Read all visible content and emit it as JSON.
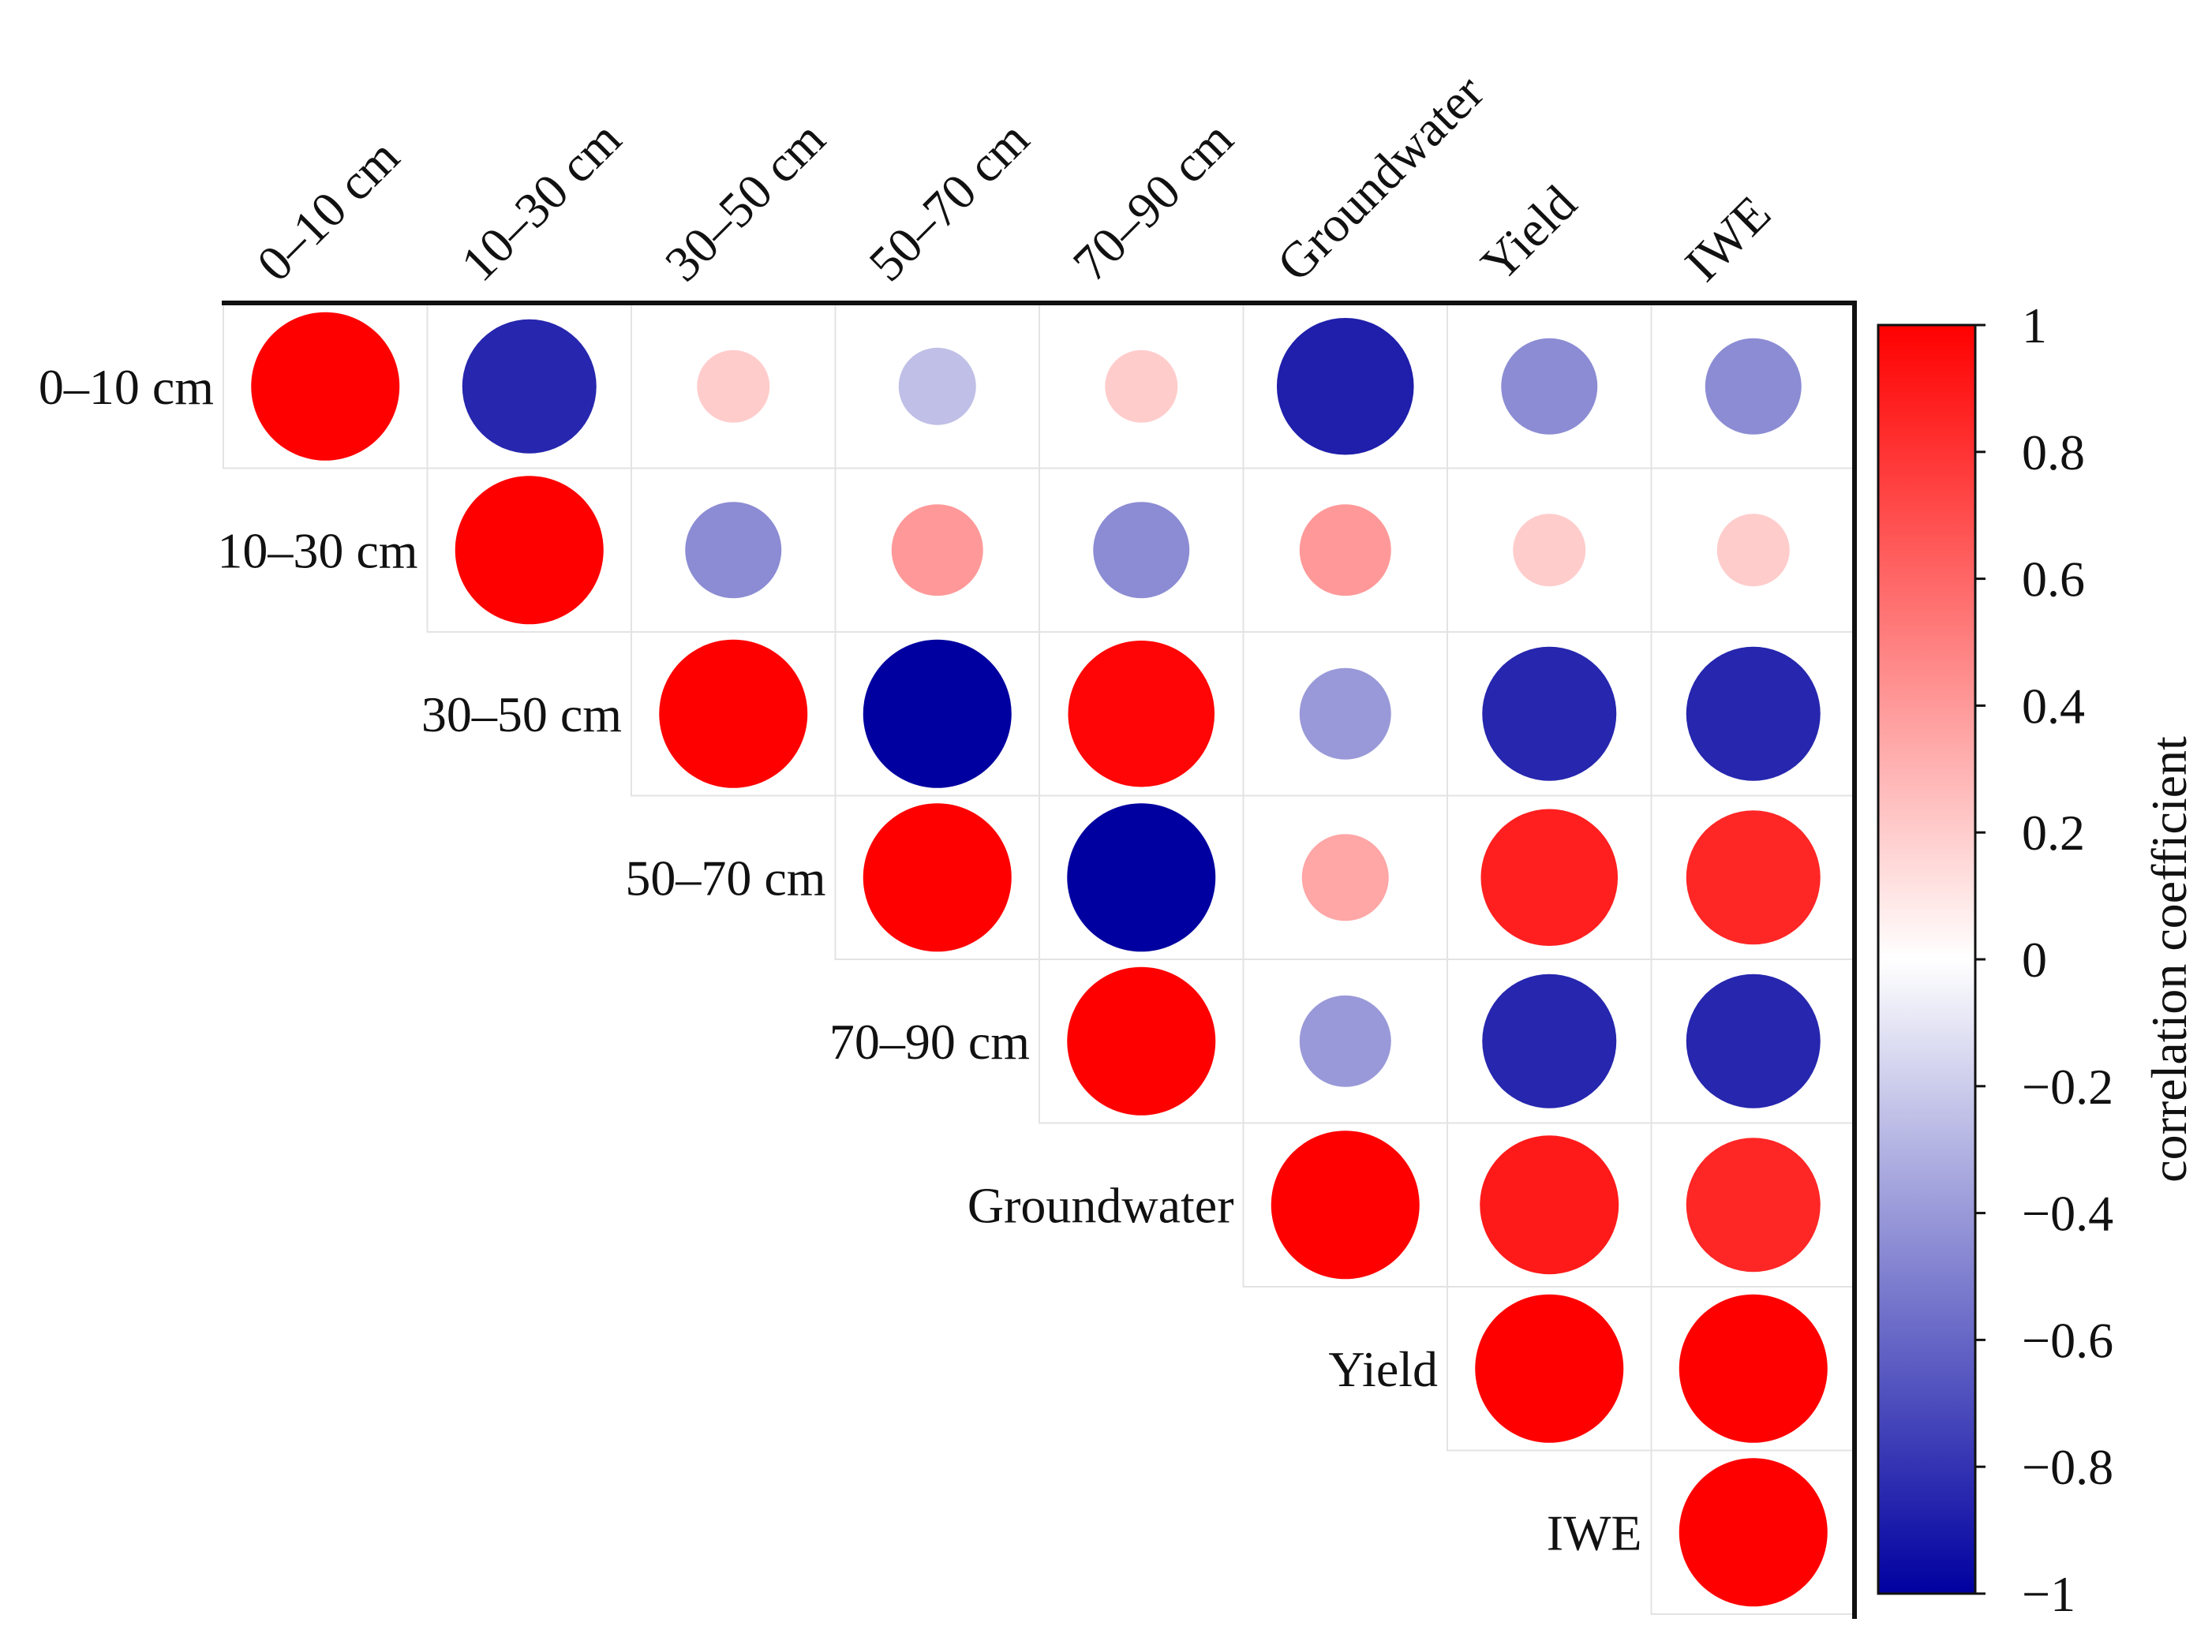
{
  "chart_data": {
    "type": "heatmap",
    "style": "upper-triangle correlation circles",
    "variables": [
      "0–10 cm",
      "10–30 cm",
      "30–50 cm",
      "50–70 cm",
      "70–90 cm",
      "Groundwater",
      "Yield",
      "IWE"
    ],
    "matrix": [
      [
        1.0,
        -0.85,
        0.2,
        -0.25,
        0.2,
        -0.88,
        -0.45,
        -0.45
      ],
      [
        -0.85,
        1.0,
        -0.45,
        0.4,
        -0.45,
        0.4,
        0.2,
        0.2
      ],
      [
        0.2,
        -0.45,
        1.0,
        -1.0,
        0.98,
        -0.4,
        -0.85,
        -0.85
      ],
      [
        -0.25,
        0.4,
        -1.0,
        1.0,
        -1.0,
        0.35,
        0.88,
        0.85
      ],
      [
        0.2,
        -0.45,
        0.98,
        -1.0,
        1.0,
        -0.4,
        -0.85,
        -0.85
      ],
      [
        -0.88,
        0.4,
        -0.4,
        0.35,
        -0.4,
        1.0,
        0.9,
        0.85
      ],
      [
        -0.45,
        0.2,
        -0.85,
        0.88,
        -0.85,
        0.9,
        1.0,
        1.0
      ],
      [
        -0.45,
        0.2,
        -0.85,
        0.85,
        -0.85,
        0.85,
        1.0,
        1.0
      ]
    ],
    "colorbar": {
      "label": "correlation coefficient",
      "range": [
        -1,
        1
      ],
      "ticks": [
        "1",
        "0.8",
        "0.6",
        "0.4",
        "0.2",
        "0",
        "−0.2",
        "−0.4",
        "−0.6",
        "−0.8",
        "−1"
      ],
      "tick_values": [
        1,
        0.8,
        0.6,
        0.4,
        0.2,
        0,
        -0.2,
        -0.4,
        -0.6,
        -0.8,
        -1
      ],
      "colors": {
        "negative": "#0000a0",
        "zero": "#ffffff",
        "positive": "#ff0000"
      }
    },
    "grid": true,
    "legend": "right"
  }
}
